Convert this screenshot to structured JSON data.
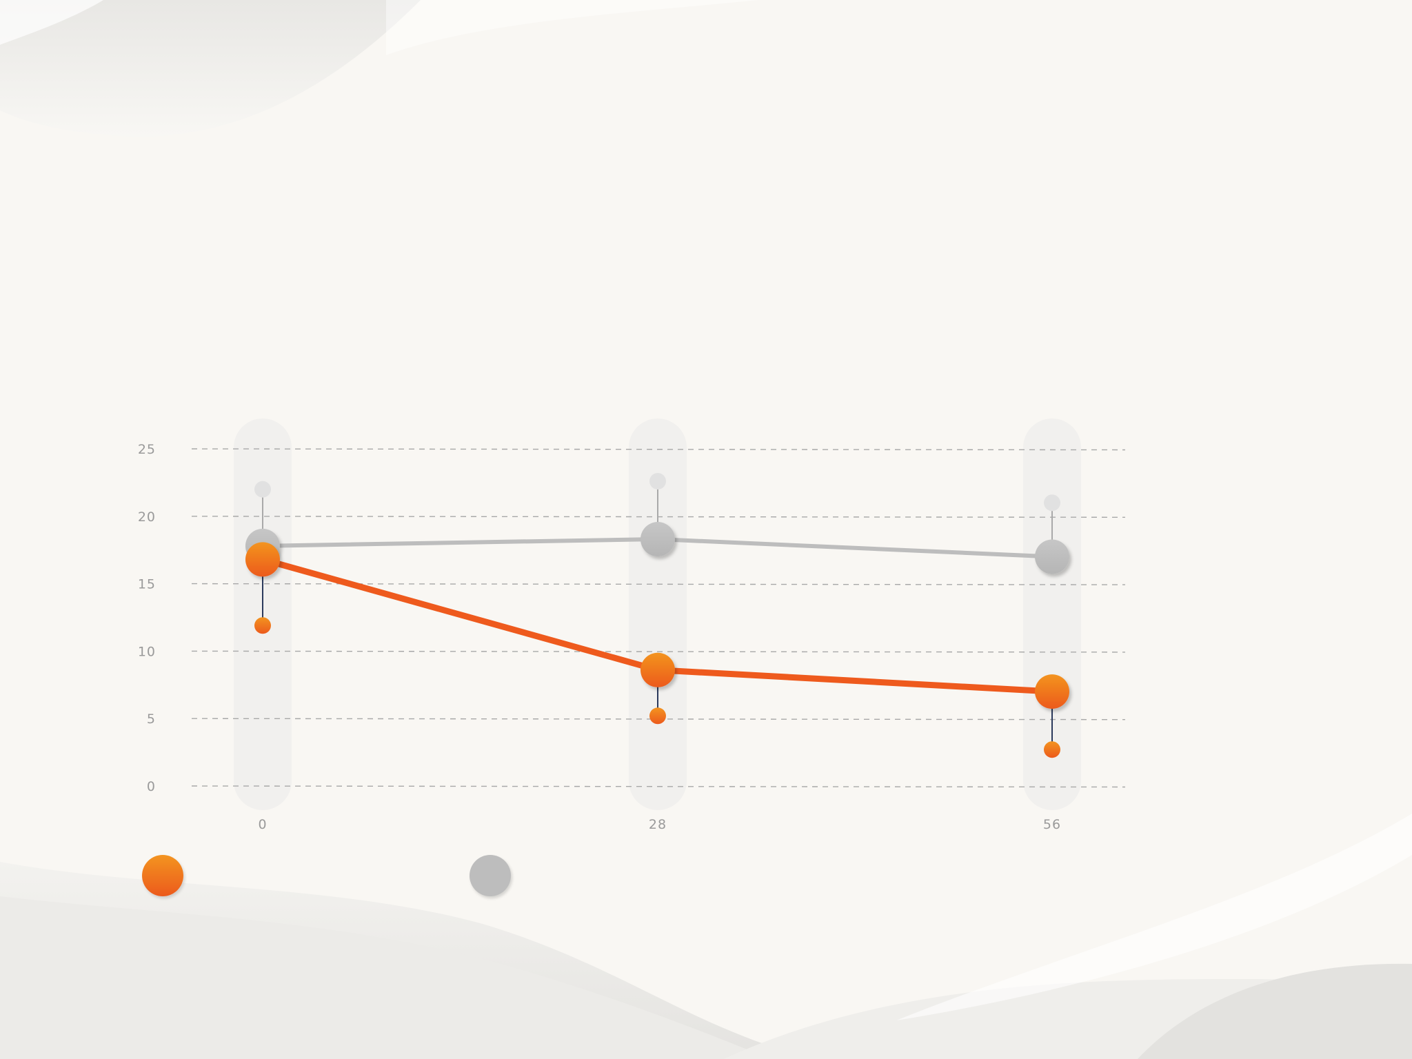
{
  "colors": {
    "treatment": "#ee5a1d",
    "control": "#bdbdbd",
    "background": "#f9f7f3",
    "whisker": "#2b3a5c",
    "band": "#f1f0ee"
  },
  "chart_data": {
    "type": "line",
    "x": [
      0,
      28,
      56
    ],
    "x_tick_labels": [
      "0",
      "28",
      "56"
    ],
    "y_tick_labels": [
      "0",
      "5",
      "10",
      "15",
      "20",
      "25"
    ],
    "ylim": [
      0,
      25
    ],
    "grid": true,
    "series": [
      {
        "key": "control",
        "values": [
          17.8,
          18.3,
          17.0
        ],
        "whisker_end": [
          22.0,
          22.6,
          21.0
        ],
        "color": "#bdbdbd"
      },
      {
        "key": "treatment",
        "values": [
          16.8,
          8.6,
          7.0
        ],
        "whisker_end": [
          11.9,
          5.2,
          2.7
        ],
        "color": "#ee5a1d"
      }
    ]
  }
}
